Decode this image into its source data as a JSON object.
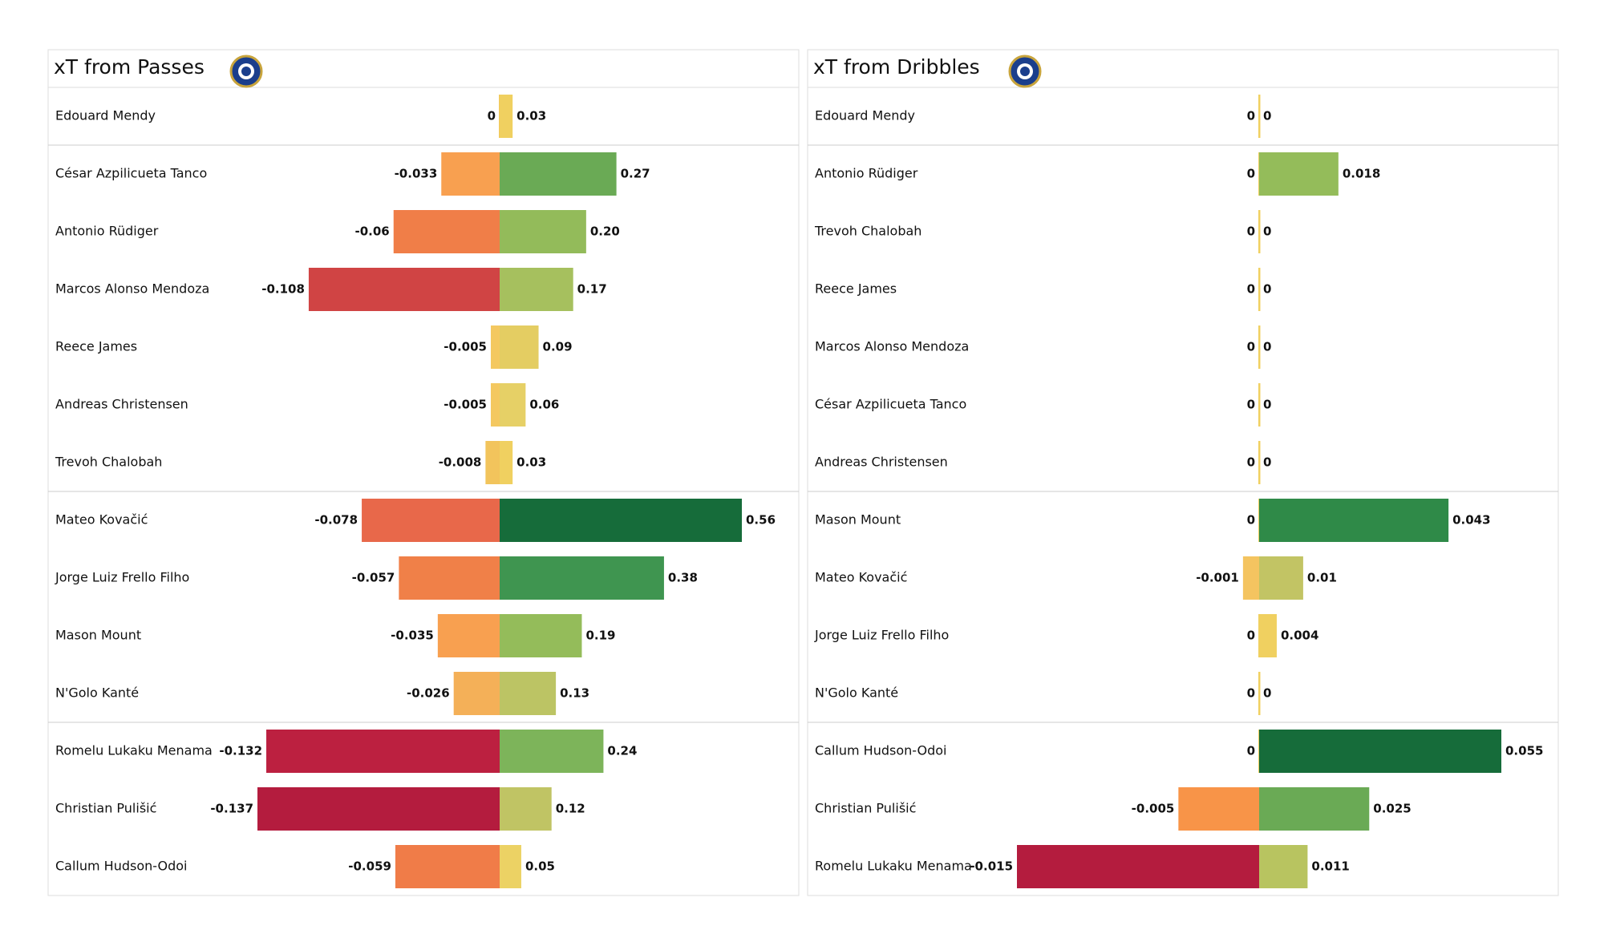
{
  "chart_data": [
    {
      "type": "diverging_bar",
      "title": "xT from Passes",
      "categories": [
        "Edouard Mendy",
        "César Azpilicueta Tanco",
        "Antonio Rüdiger",
        "Marcos  Alonso Mendoza",
        "Reece James",
        "Andreas Christensen",
        "Trevoh Chalobah",
        "Mateo Kovačić",
        "Jorge Luiz Frello Filho",
        "Mason Mount",
        "N'Golo Kanté",
        "Romelu Lukaku Menama",
        "Christian Pulišić",
        "Callum Hudson-Odoi"
      ],
      "series": [
        {
          "values": [
            0,
            -0.033,
            -0.06,
            -0.108,
            -0.005,
            -0.005,
            -0.008,
            -0.078,
            -0.057,
            -0.035,
            -0.026,
            -0.132,
            -0.137,
            -0.059
          ],
          "value_labels": [
            "0",
            "-0.033",
            "-0.06",
            "-0.108",
            "-0.005",
            "-0.005",
            "-0.008",
            "-0.078",
            "-0.057",
            "-0.035",
            "-0.026",
            "-0.132",
            "-0.137",
            "-0.059"
          ],
          "colors": [
            "#f2c85c",
            "#f8a050",
            "#f07e48",
            "#d04444",
            "#f4c860",
            "#f4c860",
            "#f2c45c",
            "#e8684a",
            "#f08048",
            "#f8a050",
            "#f4b058",
            "#bc2040",
            "#b41c3e",
            "#f07c48"
          ]
        },
        {
          "values": [
            0.03,
            0.27,
            0.2,
            0.17,
            0.09,
            0.06,
            0.03,
            0.56,
            0.38,
            0.19,
            0.13,
            0.24,
            0.12,
            0.05
          ],
          "value_labels": [
            "0.03",
            "0.27",
            "0.20",
            "0.17",
            "0.09",
            "0.06",
            "0.03",
            "0.56",
            "0.38",
            "0.19",
            "0.13",
            "0.24",
            "0.12",
            "0.05"
          ],
          "colors": [
            "#f0d060",
            "#6aaa55",
            "#93bb5a",
            "#a6c05e",
            "#e4cd62",
            "#e6d066",
            "#f0d060",
            "#166c3a",
            "#3f9550",
            "#94bc5a",
            "#bcc464",
            "#7db45a",
            "#c0c464",
            "#ecd264"
          ]
        }
      ]
    },
    {
      "type": "diverging_bar",
      "title": "xT from Dribbles",
      "categories": [
        "Edouard Mendy",
        "Antonio Rüdiger",
        "Trevoh Chalobah",
        "Reece James",
        "Marcos  Alonso Mendoza",
        "César Azpilicueta Tanco",
        "Andreas Christensen",
        "Mason Mount",
        "Mateo Kovačić",
        "Jorge Luiz Frello Filho",
        "N'Golo Kanté",
        "Callum Hudson-Odoi",
        "Christian Pulišić",
        "Romelu Lukaku Menama"
      ],
      "series": [
        {
          "values": [
            0,
            0,
            0,
            0,
            0,
            0,
            0,
            0,
            -0.001,
            0,
            0,
            0,
            -0.005,
            -0.015
          ],
          "value_labels": [
            "0",
            "0",
            "0",
            "0",
            "0",
            "0",
            "0",
            "0",
            "-0.001",
            "0",
            "0",
            "0",
            "-0.005",
            "-0.015"
          ],
          "colors": [
            "#f0d060",
            "#f0d060",
            "#f0d060",
            "#f0d060",
            "#f0d060",
            "#f0d060",
            "#f0d060",
            "#f0d060",
            "#f4c460",
            "#f0d060",
            "#f0d060",
            "#f0d060",
            "#f89448",
            "#b41c3e"
          ]
        },
        {
          "values": [
            0,
            0.018,
            0,
            0,
            0,
            0,
            0,
            0.043,
            0.01,
            0.004,
            0,
            0.055,
            0.025,
            0.011
          ],
          "value_labels": [
            "0",
            "0.018",
            "0",
            "0",
            "0",
            "0",
            "0",
            "0.043",
            "0.01",
            "0.004",
            "0",
            "0.055",
            "0.025",
            "0.011"
          ],
          "colors": [
            "#f0d060",
            "#94bc5a",
            "#f0d060",
            "#f0d060",
            "#f0d060",
            "#f0d060",
            "#f0d060",
            "#2f8a48",
            "#c2c464",
            "#f0d060",
            "#f0d060",
            "#166c3a",
            "#6aaa55",
            "#b8c460"
          ]
        }
      ]
    }
  ]
}
